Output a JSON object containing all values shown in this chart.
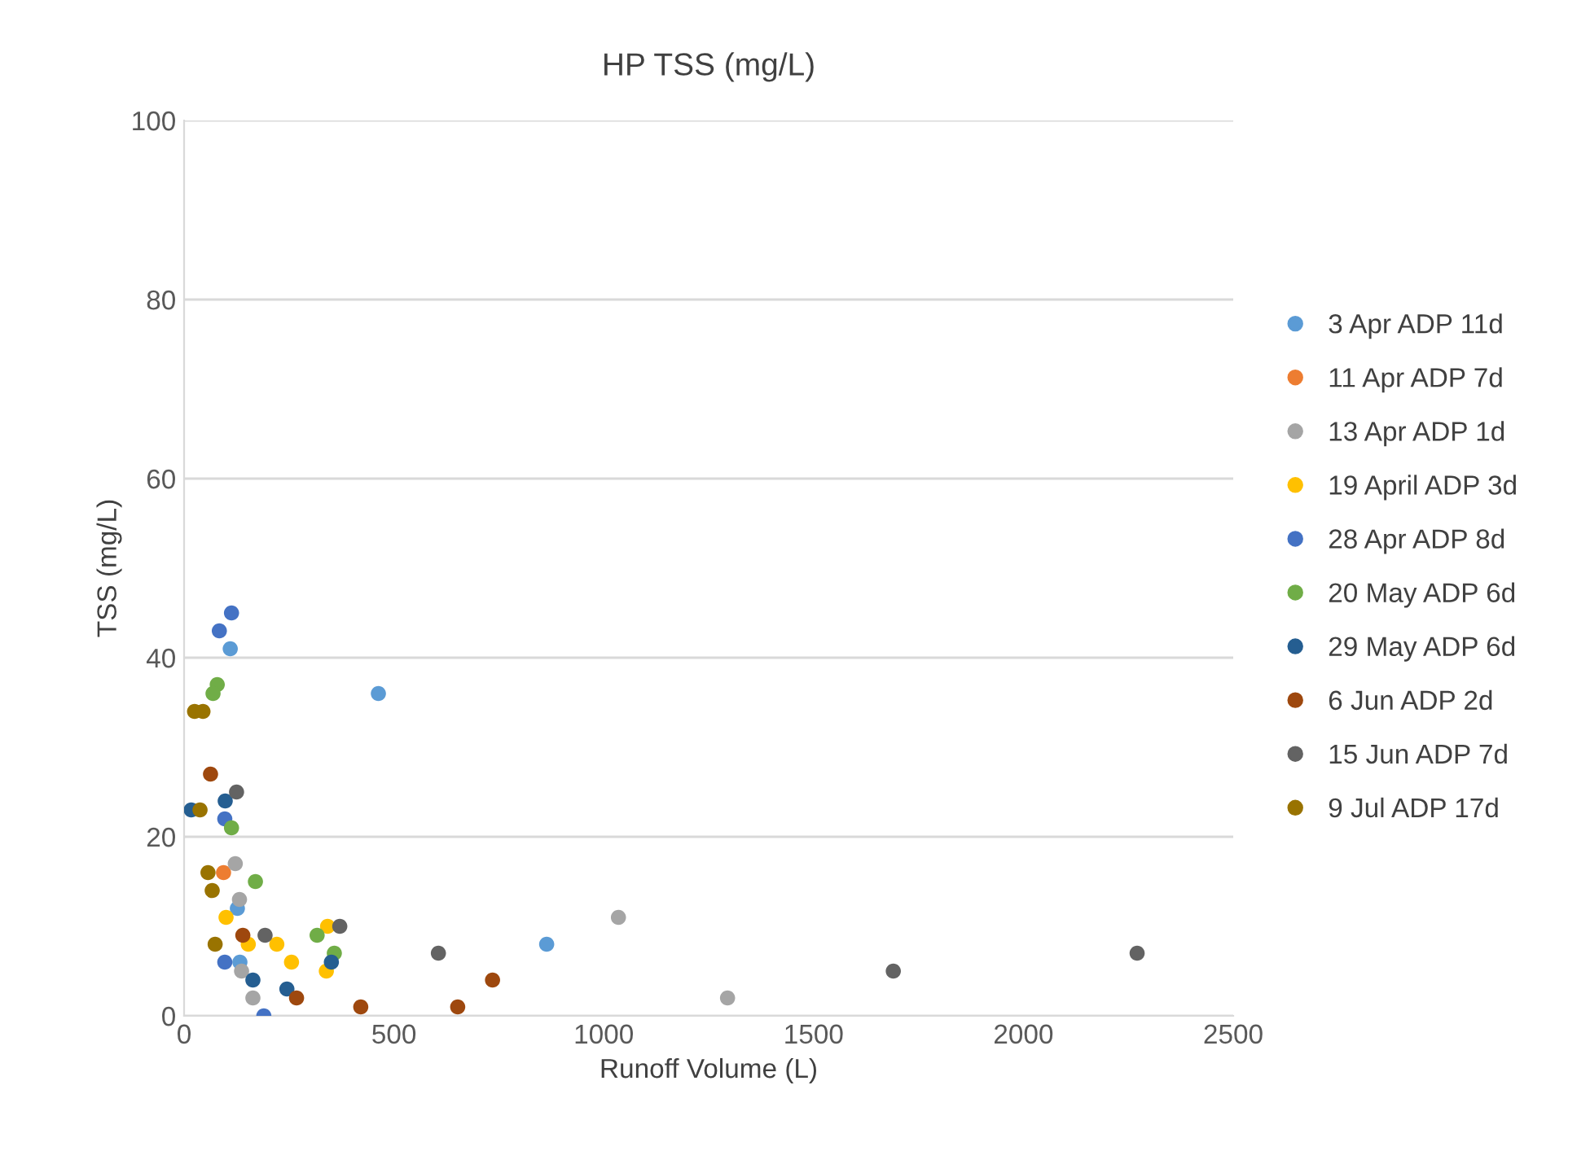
{
  "chart_data": {
    "type": "scatter",
    "title": "HP TSS (mg/L)",
    "xlabel": "Runoff Volume (L)",
    "ylabel": "TSS (mg/L)",
    "xlim": [
      0,
      2500
    ],
    "xticks": [
      0,
      500,
      1000,
      1500,
      2000,
      2500
    ],
    "ylim": [
      0,
      100
    ],
    "yticks": [
      0,
      20,
      40,
      60,
      80,
      100
    ],
    "grid": "y",
    "legend": "right",
    "marker": "circle",
    "series": [
      {
        "name": "3 Apr ADP 11d",
        "color": "#5b9bd5",
        "x": [
          110,
          463,
          127,
          133,
          864
        ],
        "values": [
          41,
          36,
          12,
          6,
          8
        ]
      },
      {
        "name": "11 Apr ADP 7d",
        "color": "#ed7d31",
        "x": [
          94
        ],
        "values": [
          16
        ]
      },
      {
        "name": "13 Apr ADP 1d",
        "color": "#a5a5a5",
        "x": [
          122,
          132,
          137,
          164,
          1035,
          1295
        ],
        "values": [
          17,
          13,
          5,
          2,
          11,
          2
        ]
      },
      {
        "name": "19 April ADP 3d",
        "color": "#ffc000",
        "x": [
          100,
          153,
          221,
          256,
          342,
          339
        ],
        "values": [
          11,
          8,
          8,
          6,
          10,
          5
        ]
      },
      {
        "name": "28 Apr ADP 8d",
        "color": "#4472c4",
        "x": [
          113,
          84,
          97,
          97,
          190
        ],
        "values": [
          45,
          43,
          22,
          6,
          0
        ]
      },
      {
        "name": "20 May ADP 6d",
        "color": "#70ad47",
        "x": [
          79,
          69,
          113,
          170,
          317,
          358
        ],
        "values": [
          37,
          36,
          21,
          15,
          9,
          7
        ]
      },
      {
        "name": "29 May ADP 6d",
        "color": "#255e91",
        "x": [
          17,
          98,
          164,
          245,
          351
        ],
        "values": [
          23,
          24,
          4,
          3,
          6
        ]
      },
      {
        "name": "6 Jun ADP 2d",
        "color": "#9e480e",
        "x": [
          63,
          140,
          268,
          421,
          652,
          735
        ],
        "values": [
          27,
          9,
          2,
          1,
          1,
          4
        ]
      },
      {
        "name": "15 Jun ADP 7d",
        "color": "#636363",
        "x": [
          125,
          193,
          371,
          606,
          1690,
          2271
        ],
        "values": [
          25,
          9,
          10,
          7,
          5,
          7
        ]
      },
      {
        "name": "9 Jul ADP 17d",
        "color": "#997300",
        "x": [
          25,
          45,
          38,
          57,
          67,
          74
        ],
        "values": [
          34,
          34,
          23,
          16,
          14,
          8
        ]
      }
    ]
  }
}
